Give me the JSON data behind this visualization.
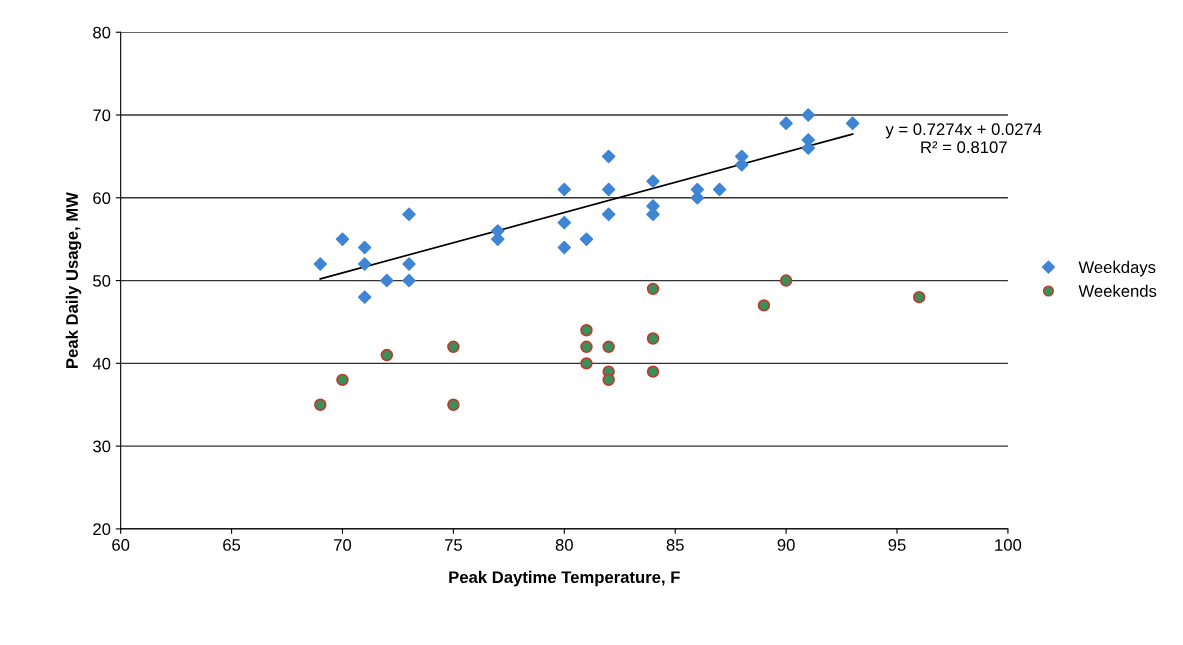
{
  "chart_data": {
    "type": "scatter",
    "xlabel": "Peak Daytime Temperature, F",
    "ylabel": "Peak Daily Usage, MW",
    "xlim": [
      60,
      100
    ],
    "xticks": [
      60,
      65,
      70,
      75,
      80,
      85,
      90,
      95,
      100
    ],
    "ylim": [
      20,
      80
    ],
    "yticks": [
      20,
      30,
      40,
      50,
      60,
      70,
      80
    ],
    "grid": "y",
    "legend": "right",
    "series": [
      {
        "name": "Weekdays",
        "color": "#3f85d4",
        "marker": "diamond",
        "x": [
          69,
          70,
          71,
          71,
          71,
          72,
          73,
          73,
          73,
          77,
          77,
          80,
          80,
          80,
          81,
          82,
          82,
          82,
          84,
          84,
          84,
          86,
          86,
          87,
          88,
          88,
          90,
          91,
          91,
          91,
          93
        ],
        "values": [
          52,
          55,
          54,
          52,
          48,
          50,
          58,
          52,
          50,
          56,
          55,
          61,
          57,
          54,
          55,
          65,
          61,
          58,
          62,
          59,
          58,
          61,
          60,
          61,
          65,
          64,
          69,
          70,
          67,
          66,
          69
        ]
      },
      {
        "name": "Weekends",
        "color": "#3a8f5a",
        "marker": "circle",
        "x": [
          69,
          70,
          72,
          75,
          75,
          81,
          81,
          81,
          82,
          82,
          82,
          84,
          84,
          84,
          89,
          90,
          96
        ],
        "values": [
          35,
          38,
          41,
          42,
          35,
          44,
          42,
          40,
          42,
          39,
          38,
          49,
          43,
          39,
          47,
          50,
          48
        ]
      },
      {
        "type": "line",
        "color": "#000000",
        "marker": "none",
        "x": [
          69,
          93
        ],
        "values": [
          50.2,
          67.7
        ]
      }
    ],
    "annotations": [
      {
        "text": "y = 0.7274x + 0.0274\nR² = 0.8107",
        "x": 93,
        "y": 67.7
      }
    ]
  }
}
